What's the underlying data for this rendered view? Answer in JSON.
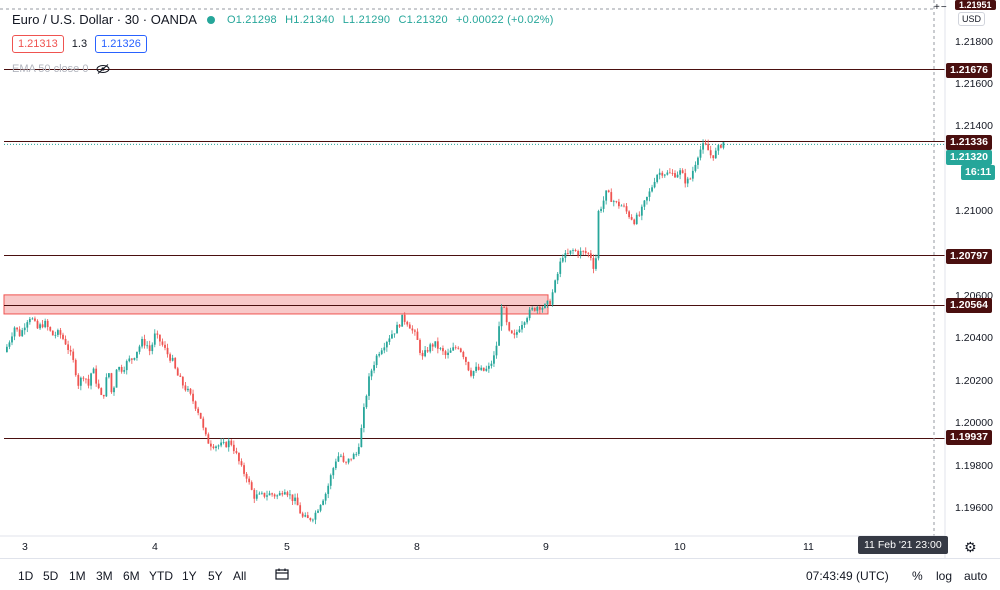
{
  "header": {
    "symbol": "Euro / U.S. Dollar · 30 · OANDA",
    "open": "O1.21298",
    "high": "H1.21340",
    "low": "L1.21290",
    "close": "C1.21320",
    "change": "+0.00022 (+0.02%)"
  },
  "trade": {
    "sell": "1.21313",
    "spread": "1.3",
    "buy": "1.21326"
  },
  "indicator": {
    "label": "EMA 50 close 0"
  },
  "axis": {
    "currency": "USD",
    "top_label": "1.21951",
    "labels": [
      "1.21800",
      "1.21600",
      "1.21400",
      "1.21000",
      "1.20600",
      "1.20400",
      "1.20200",
      "1.20000",
      "1.19800",
      "1.19600"
    ]
  },
  "tags": {
    "line1": "1.21676",
    "line2": "1.21336",
    "current": "1.21320",
    "countdown": "16:11",
    "line3": "1.20797",
    "line4": "1.20564",
    "line5": "1.19937"
  },
  "xaxis": {
    "labels": [
      "3",
      "4",
      "5",
      "8",
      "9",
      "10",
      "11"
    ],
    "cursor_time": "11 Feb '21   23:00"
  },
  "toolbar": {
    "timeframes": [
      "1D",
      "5D",
      "1M",
      "3M",
      "6M",
      "YTD",
      "1Y",
      "5Y",
      "All"
    ],
    "clock": "07:43:49 (UTC)",
    "percent": "%",
    "log": "log",
    "auto": "auto"
  },
  "colors": {
    "up": "#26a69a",
    "down": "#ef5350",
    "zone_fill": "#f8c9c9",
    "zone_border": "#ef5350",
    "level_line": "#4a0f0f"
  },
  "chart_data": {
    "type": "candlestick",
    "title": "Euro / U.S. Dollar · 30 · OANDA",
    "ylim": [
      1.1945,
      1.2197
    ],
    "y_ticks": [
      1.196,
      1.198,
      1.2,
      1.202,
      1.204,
      1.206,
      1.21,
      1.214,
      1.216,
      1.218
    ],
    "x_ticks": [
      "3",
      "4",
      "5",
      "8",
      "9",
      "10",
      "11"
    ],
    "levels": [
      1.21676,
      1.21336,
      1.20797,
      1.20564,
      1.19937
    ],
    "zone": [
      1.2052,
      1.2061
    ],
    "current_price": 1.2132,
    "path": [
      [
        0,
        1.2034
      ],
      [
        4,
        1.2038
      ],
      [
        10,
        1.2046
      ],
      [
        16,
        1.2042
      ],
      [
        22,
        1.2049
      ],
      [
        26,
        1.2051
      ],
      [
        33,
        1.2045
      ],
      [
        40,
        1.2048
      ],
      [
        48,
        1.2042
      ],
      [
        55,
        1.2043
      ],
      [
        62,
        1.2038
      ],
      [
        66,
        1.2033
      ],
      [
        70,
        1.2028
      ],
      [
        74,
        1.2019
      ],
      [
        80,
        1.2024
      ],
      [
        84,
        1.2018
      ],
      [
        88,
        1.2027
      ],
      [
        92,
        1.202
      ],
      [
        98,
        1.2011
      ],
      [
        104,
        1.2026
      ],
      [
        108,
        1.2012
      ],
      [
        112,
        1.2027
      ],
      [
        118,
        1.2026
      ],
      [
        124,
        1.203
      ],
      [
        128,
        1.2031
      ],
      [
        134,
        1.2036
      ],
      [
        138,
        1.2039
      ],
      [
        142,
        1.2038
      ],
      [
        146,
        1.2034
      ],
      [
        150,
        1.2042
      ],
      [
        156,
        1.2039
      ],
      [
        162,
        1.2034
      ],
      [
        168,
        1.203
      ],
      [
        172,
        1.2024
      ],
      [
        178,
        1.2019
      ],
      [
        184,
        1.2015
      ],
      [
        190,
        1.201
      ],
      [
        196,
        1.2004
      ],
      [
        200,
        1.1995
      ],
      [
        205,
        1.1991
      ],
      [
        212,
        1.199
      ],
      [
        220,
        1.199
      ],
      [
        226,
        1.1992
      ],
      [
        230,
        1.1988
      ],
      [
        234,
        1.1983
      ],
      [
        238,
        1.1978
      ],
      [
        242,
        1.1976
      ],
      [
        246,
        1.197
      ],
      [
        250,
        1.1966
      ],
      [
        256,
        1.1966
      ],
      [
        262,
        1.1967
      ],
      [
        268,
        1.1967
      ],
      [
        274,
        1.1966
      ],
      [
        280,
        1.197
      ],
      [
        286,
        1.1966
      ],
      [
        292,
        1.1963
      ],
      [
        298,
        1.1956
      ],
      [
        304,
        1.1955
      ],
      [
        310,
        1.1957
      ],
      [
        316,
        1.1963
      ],
      [
        322,
        1.1968
      ],
      [
        328,
        1.1978
      ],
      [
        332,
        1.1984
      ],
      [
        336,
        1.1986
      ],
      [
        340,
        1.198
      ],
      [
        346,
        1.1984
      ],
      [
        352,
        1.1986
      ],
      [
        356,
        1.1994
      ],
      [
        360,
        1.2008
      ],
      [
        364,
        1.202
      ],
      [
        368,
        1.2027
      ],
      [
        374,
        1.2034
      ],
      [
        380,
        1.2038
      ],
      [
        386,
        1.2042
      ],
      [
        392,
        1.2045
      ],
      [
        398,
        1.205
      ],
      [
        404,
        1.2048
      ],
      [
        408,
        1.2044
      ],
      [
        412,
        1.2041
      ],
      [
        418,
        1.2031
      ],
      [
        424,
        1.2036
      ],
      [
        430,
        1.2038
      ],
      [
        436,
        1.2035
      ],
      [
        442,
        1.2032
      ],
      [
        448,
        1.2035
      ],
      [
        454,
        1.2037
      ],
      [
        460,
        1.2032
      ],
      [
        466,
        1.2024
      ],
      [
        472,
        1.2026
      ],
      [
        478,
        1.2025
      ],
      [
        484,
        1.2026
      ],
      [
        490,
        1.2032
      ],
      [
        494,
        1.2042
      ],
      [
        497,
        1.2057
      ],
      [
        500,
        1.2053
      ],
      [
        504,
        1.2043
      ],
      [
        510,
        1.2041
      ],
      [
        516,
        1.2047
      ],
      [
        522,
        1.2051
      ],
      [
        528,
        1.2054
      ],
      [
        534,
        1.2056
      ],
      [
        540,
        1.2055
      ],
      [
        546,
        1.2058
      ],
      [
        550,
        1.2065
      ],
      [
        554,
        1.2072
      ],
      [
        558,
        1.208
      ],
      [
        562,
        1.2079
      ],
      [
        568,
        1.2082
      ],
      [
        574,
        1.2081
      ],
      [
        580,
        1.2081
      ],
      [
        586,
        1.208
      ],
      [
        590,
        1.2073
      ],
      [
        592,
        1.208
      ],
      [
        594,
        1.21
      ],
      [
        598,
        1.2104
      ],
      [
        602,
        1.2109
      ],
      [
        606,
        1.2107
      ],
      [
        612,
        1.2104
      ],
      [
        618,
        1.2103
      ],
      [
        624,
        1.2099
      ],
      [
        630,
        1.2096
      ],
      [
        636,
        1.2099
      ],
      [
        640,
        1.2104
      ],
      [
        646,
        1.211
      ],
      [
        652,
        1.2118
      ],
      [
        658,
        1.2119
      ],
      [
        664,
        1.2118
      ],
      [
        670,
        1.2118
      ],
      [
        676,
        1.2119
      ],
      [
        682,
        1.2114
      ],
      [
        686,
        1.2116
      ],
      [
        690,
        1.2122
      ],
      [
        694,
        1.2128
      ],
      [
        698,
        1.2131
      ],
      [
        702,
        1.2131
      ],
      [
        706,
        1.2127
      ],
      [
        710,
        1.2127
      ],
      [
        714,
        1.213
      ],
      [
        718,
        1.2133
      ]
    ],
    "minutes_per_day": 0,
    "x_domain": [
      0,
      720
    ]
  }
}
